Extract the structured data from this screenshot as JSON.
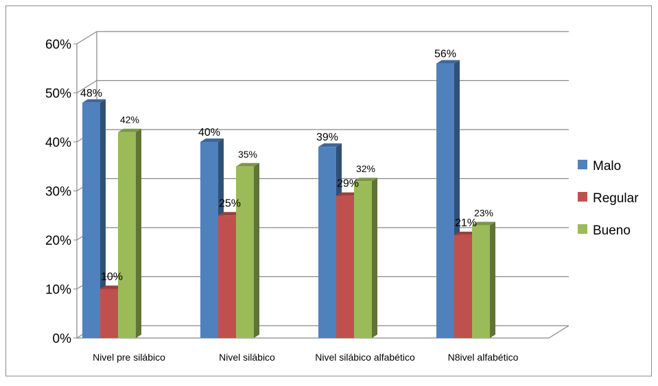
{
  "chart_data": {
    "type": "bar",
    "categories": [
      "Nivel pre silábico",
      "Nivel silábico",
      "Nivel silábico alfabético",
      "N8ivel alfabético"
    ],
    "series": [
      {
        "name": "Malo",
        "values": [
          48,
          40,
          39,
          56
        ],
        "labels": [
          "48%",
          "40%",
          "39%",
          "56%"
        ],
        "color": "#4F81BD"
      },
      {
        "name": "Regular",
        "values": [
          10,
          25,
          29,
          21
        ],
        "labels": [
          "10%",
          "25%",
          "29%",
          "21%"
        ],
        "color": "#C0504D"
      },
      {
        "name": "Bueno",
        "values": [
          42,
          35,
          32,
          23
        ],
        "labels": [
          "42%",
          "35%",
          "32%",
          "23%"
        ],
        "color": "#9BBB59"
      }
    ],
    "yticks": [
      "0%",
      "10%",
      "20%",
      "30%",
      "40%",
      "50%",
      "60%"
    ],
    "ylim": [
      0,
      60
    ],
    "value_unit": "%",
    "grid": true,
    "three_d": true,
    "legend_position": "right"
  }
}
